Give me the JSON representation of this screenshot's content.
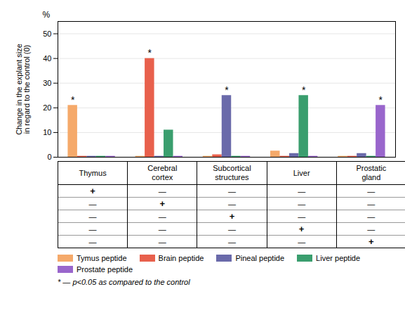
{
  "chart_data": {
    "type": "bar",
    "categories": [
      "Thymus",
      "Cerebral\ncortex",
      "Subcortical\nstructures",
      "Liver",
      "Prostatic\ngland"
    ],
    "series": [
      {
        "name": "Tymus peptide",
        "color": "#F5A96A",
        "values": [
          21,
          0.4,
          0.4,
          2.5,
          0.4
        ]
      },
      {
        "name": "Brain peptide",
        "color": "#E8604C",
        "values": [
          0.4,
          40,
          1.0,
          0.4,
          0.4
        ]
      },
      {
        "name": "Pineal peptide",
        "color": "#6A6AAA",
        "values": [
          0.4,
          0.4,
          25,
          1.5,
          1.5
        ]
      },
      {
        "name": "Liver peptide",
        "color": "#3A9E6E",
        "values": [
          0.4,
          11,
          0.4,
          25,
          0.4
        ]
      },
      {
        "name": "Prostate peptide",
        "color": "#9966CC",
        "values": [
          0.4,
          0.4,
          0.4,
          0.4,
          21
        ]
      }
    ],
    "ylabel": "Change in the explant size\nin regard to the control (0)",
    "percent_label": "%",
    "ylim": [
      0,
      55
    ],
    "yticks": [
      0,
      10,
      20,
      30,
      40,
      50
    ],
    "grid": true,
    "tick_labels": "y",
    "annotations": [
      {
        "category": "Thymus",
        "series": "Tymus peptide",
        "text": "*"
      },
      {
        "category": "Cerebral\ncortex",
        "series": "Brain peptide",
        "text": "*"
      },
      {
        "category": "Subcortical\nstructures",
        "series": "Pineal peptide",
        "text": "*"
      },
      {
        "category": "Liver",
        "series": "Liver peptide",
        "text": "*"
      },
      {
        "category": "Prostatic\ngland",
        "series": "Prostate peptide",
        "text": "*"
      }
    ],
    "table": [
      [
        "+",
        "—",
        "—",
        "—",
        "—"
      ],
      [
        "—",
        "+",
        "—",
        "—",
        "—"
      ],
      [
        "—",
        "—",
        "+",
        "—",
        "—"
      ],
      [
        "—",
        "—",
        "—",
        "+",
        "—"
      ],
      [
        "—",
        "—",
        "—",
        "—",
        "+"
      ]
    ],
    "note": "* — p<0.05 as compared to the control"
  }
}
